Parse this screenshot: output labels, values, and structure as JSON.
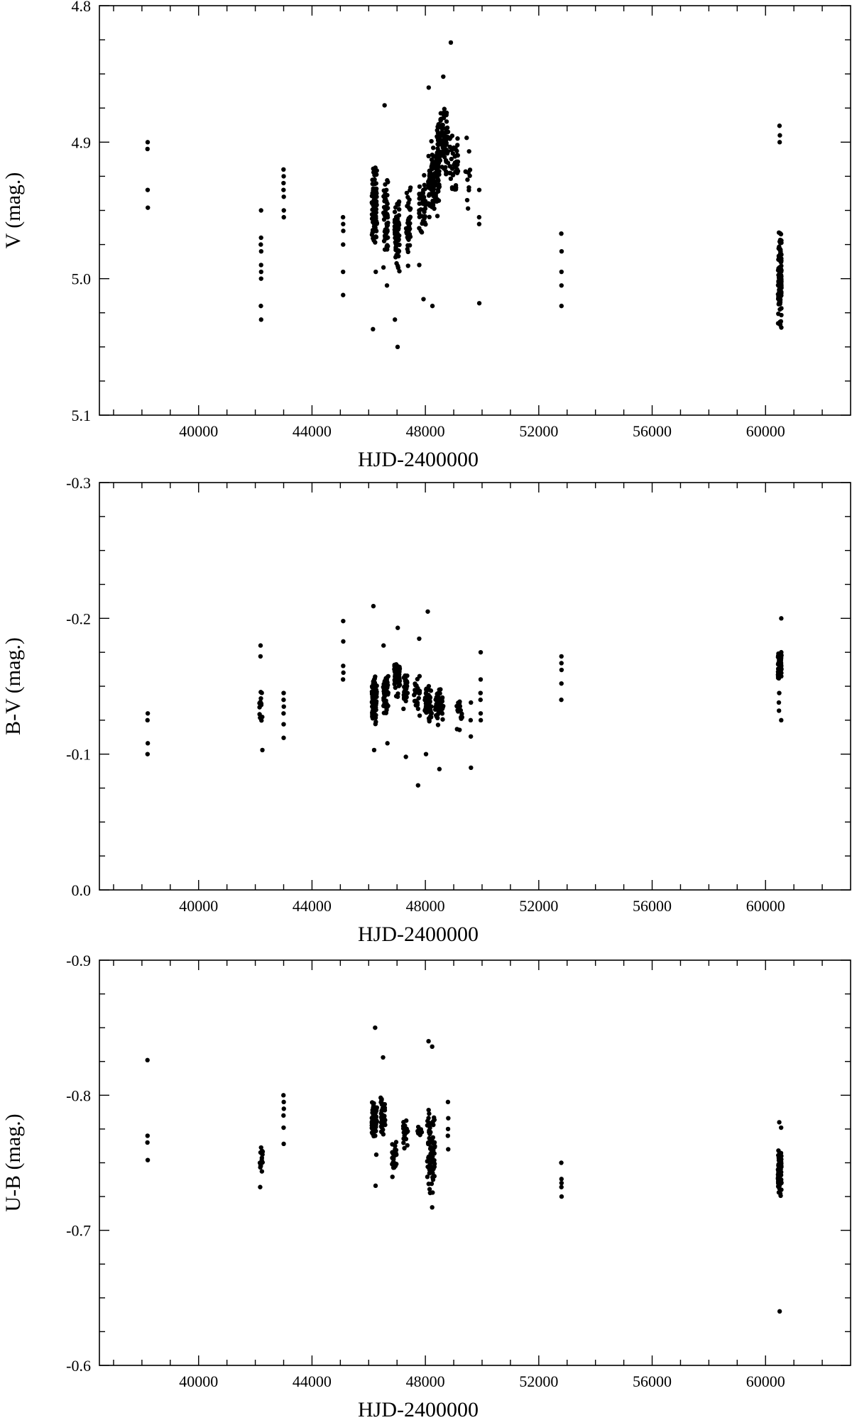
{
  "chart_data": [
    {
      "type": "scatter",
      "title": "",
      "xlabel": "HJD-2400000",
      "ylabel": "V (mag.)",
      "xlim": [
        36500,
        63000
      ],
      "ylim": [
        5.1,
        4.8
      ],
      "y_inverted": true,
      "x_ticks": [
        "40000",
        "44000",
        "48000",
        "52000",
        "56000",
        "60000"
      ],
      "y_ticks": [
        "4.8",
        "4.9",
        "5.0",
        "5.1"
      ],
      "clusters": [
        {
          "x_center": 38200,
          "x_spread": 60,
          "y_values": [
            4.9,
            4.905,
            4.935,
            4.948
          ]
        },
        {
          "x_center": 42200,
          "x_spread": 60,
          "y_values": [
            4.95,
            4.97,
            4.975,
            4.98,
            4.99,
            4.995,
            5.0,
            5.02,
            5.03
          ]
        },
        {
          "x_center": 43000,
          "x_spread": 50,
          "y_values": [
            4.92,
            4.925,
            4.93,
            4.935,
            4.94,
            4.95,
            4.955
          ]
        },
        {
          "x_center": 45100,
          "x_spread": 50,
          "y_values": [
            4.955,
            4.96,
            4.965,
            4.975,
            4.995,
            5.012
          ]
        },
        {
          "x_center": 46200,
          "x_spread": 90,
          "y_min": 4.91,
          "y_max": 4.985,
          "n": 90,
          "outliers": [
            5.037,
            4.995
          ]
        },
        {
          "x_center": 46600,
          "x_spread": 80,
          "y_min": 4.915,
          "y_max": 4.995,
          "n": 60,
          "outliers": [
            4.873,
            5.005
          ]
        },
        {
          "x_center": 47000,
          "x_spread": 90,
          "y_min": 4.935,
          "y_max": 5.0,
          "n": 70,
          "outliers": [
            5.05,
            5.03
          ]
        },
        {
          "x_center": 47400,
          "x_spread": 80,
          "y_min": 4.925,
          "y_max": 4.995,
          "n": 45,
          "outliers": []
        },
        {
          "x_center": 47900,
          "x_spread": 120,
          "y_min": 4.92,
          "y_max": 4.975,
          "n": 40,
          "outliers": [
            5.015,
            4.99
          ]
        },
        {
          "x_center": 48300,
          "x_spread": 200,
          "y_min": 4.895,
          "y_max": 4.96,
          "n": 120,
          "outliers": [
            5.02,
            4.86
          ]
        },
        {
          "x_center": 48600,
          "x_spread": 200,
          "y_min": 4.865,
          "y_max": 4.935,
          "n": 90,
          "outliers": [
            4.852,
            4.88
          ]
        },
        {
          "x_center": 49000,
          "x_spread": 150,
          "y_min": 4.88,
          "y_max": 4.95,
          "n": 40,
          "outliers": [
            4.827
          ]
        },
        {
          "x_center": 49500,
          "x_spread": 100,
          "y_min": 4.885,
          "y_max": 4.96,
          "n": 12,
          "outliers": []
        },
        {
          "x_center": 49900,
          "x_spread": 50,
          "y_values": [
            4.935,
            4.955,
            4.96,
            5.018
          ]
        },
        {
          "x_center": 52800,
          "x_spread": 40,
          "y_values": [
            4.967,
            4.98,
            4.995,
            5.005,
            5.02
          ]
        },
        {
          "x_center": 60500,
          "x_spread": 60,
          "y_values": [
            4.888,
            4.895,
            4.9
          ],
          "y_min": 4.95,
          "y_max": 5.045,
          "n": 130
        }
      ]
    },
    {
      "type": "scatter",
      "title": "",
      "xlabel": "HJD-2400000",
      "ylabel": "B-V  (mag.)",
      "xlim": [
        36500,
        63000
      ],
      "ylim": [
        0.0,
        -0.3
      ],
      "x_ticks": [
        "40000",
        "44000",
        "48000",
        "52000",
        "56000",
        "60000"
      ],
      "y_ticks": [
        "-0.3",
        "-0.2",
        "-0.1",
        "0.0"
      ],
      "clusters": [
        {
          "x_center": 38200,
          "x_spread": 50,
          "y_values": [
            -0.1,
            -0.108,
            -0.125,
            -0.13
          ]
        },
        {
          "x_center": 42200,
          "x_spread": 60,
          "y_min": -0.155,
          "y_max": -0.115,
          "n": 14,
          "outliers": [
            -0.103,
            -0.172,
            -0.18
          ]
        },
        {
          "x_center": 43000,
          "x_spread": 50,
          "y_values": [
            -0.112,
            -0.122,
            -0.13,
            -0.135,
            -0.14,
            -0.145
          ]
        },
        {
          "x_center": 45100,
          "x_spread": 50,
          "y_values": [
            -0.155,
            -0.16,
            -0.165,
            -0.183,
            -0.198
          ]
        },
        {
          "x_center": 46200,
          "x_spread": 90,
          "y_min": -0.165,
          "y_max": -0.115,
          "n": 90,
          "outliers": [
            -0.103,
            -0.209
          ]
        },
        {
          "x_center": 46600,
          "x_spread": 90,
          "y_min": -0.165,
          "y_max": -0.125,
          "n": 50,
          "outliers": [
            -0.108,
            -0.18
          ]
        },
        {
          "x_center": 47000,
          "x_spread": 100,
          "y_min": -0.175,
          "y_max": -0.14,
          "n": 60,
          "outliers": [
            -0.193
          ]
        },
        {
          "x_center": 47300,
          "x_spread": 80,
          "y_min": -0.165,
          "y_max": -0.13,
          "n": 30,
          "outliers": [
            -0.098
          ]
        },
        {
          "x_center": 47700,
          "x_spread": 100,
          "y_min": -0.16,
          "y_max": -0.125,
          "n": 25,
          "outliers": [
            -0.077,
            -0.185
          ]
        },
        {
          "x_center": 48100,
          "x_spread": 120,
          "y_min": -0.155,
          "y_max": -0.12,
          "n": 60,
          "outliers": [
            -0.205,
            -0.1
          ]
        },
        {
          "x_center": 48500,
          "x_spread": 150,
          "y_min": -0.15,
          "y_max": -0.12,
          "n": 50,
          "outliers": [
            -0.089
          ]
        },
        {
          "x_center": 49200,
          "x_spread": 100,
          "y_min": -0.15,
          "y_max": -0.105,
          "n": 18,
          "outliers": []
        },
        {
          "x_center": 49600,
          "x_spread": 60,
          "y_values": [
            -0.09,
            -0.113,
            -0.125,
            -0.138
          ]
        },
        {
          "x_center": 49950,
          "x_spread": 40,
          "y_values": [
            -0.125,
            -0.13,
            -0.14,
            -0.145,
            -0.155,
            -0.175
          ]
        },
        {
          "x_center": 52800,
          "x_spread": 40,
          "y_values": [
            -0.14,
            -0.152,
            -0.162,
            -0.167,
            -0.172
          ]
        },
        {
          "x_center": 60500,
          "x_spread": 60,
          "y_min": -0.18,
          "y_max": -0.15,
          "n": 90,
          "outliers": [
            -0.125,
            -0.132,
            -0.138,
            -0.145,
            -0.2
          ]
        }
      ]
    },
    {
      "type": "scatter",
      "title": "",
      "xlabel": "HJD-2400000",
      "ylabel": "U-B  (mag.)",
      "xlim": [
        36500,
        63000
      ],
      "ylim": [
        -0.6,
        -0.9
      ],
      "x_ticks": [
        "40000",
        "44000",
        "48000",
        "52000",
        "56000",
        "60000"
      ],
      "y_ticks": [
        "-0.9",
        "-0.8",
        "-0.7",
        "-0.6"
      ],
      "clusters": [
        {
          "x_center": 38200,
          "x_spread": 50,
          "y_values": [
            -0.752,
            -0.765,
            -0.77,
            -0.826
          ]
        },
        {
          "x_center": 42200,
          "x_spread": 60,
          "y_min": -0.775,
          "y_max": -0.735,
          "n": 14,
          "outliers": [
            -0.732
          ]
        },
        {
          "x_center": 43000,
          "x_spread": 50,
          "y_values": [
            -0.764,
            -0.776,
            -0.785,
            -0.79,
            -0.795,
            -0.8
          ]
        },
        {
          "x_center": 46200,
          "x_spread": 90,
          "y_min": -0.8,
          "y_max": -0.765,
          "n": 80,
          "outliers": [
            -0.733,
            -0.85,
            -0.756
          ]
        },
        {
          "x_center": 46500,
          "x_spread": 80,
          "y_min": -0.805,
          "y_max": -0.765,
          "n": 40,
          "outliers": [
            -0.828
          ]
        },
        {
          "x_center": 46900,
          "x_spread": 80,
          "y_min": -0.77,
          "y_max": -0.735,
          "n": 35,
          "outliers": []
        },
        {
          "x_center": 47300,
          "x_spread": 80,
          "y_min": -0.79,
          "y_max": -0.755,
          "n": 20,
          "outliers": []
        },
        {
          "x_center": 47800,
          "x_spread": 80,
          "y_min": -0.782,
          "y_max": -0.765,
          "n": 12,
          "outliers": []
        },
        {
          "x_center": 48200,
          "x_spread": 140,
          "y_min": -0.8,
          "y_max": -0.72,
          "n": 70,
          "outliers": [
            -0.84,
            -0.836,
            -0.717
          ]
        },
        {
          "x_center": 48800,
          "x_spread": 60,
          "y_values": [
            -0.76,
            -0.77,
            -0.775,
            -0.783,
            -0.795
          ]
        },
        {
          "x_center": 52800,
          "x_spread": 40,
          "y_values": [
            -0.725,
            -0.732,
            -0.735,
            -0.738,
            -0.75
          ]
        },
        {
          "x_center": 60500,
          "x_spread": 60,
          "y_min": -0.765,
          "y_max": -0.72,
          "n": 90,
          "outliers": [
            -0.64,
            -0.776,
            -0.78
          ]
        }
      ]
    }
  ]
}
